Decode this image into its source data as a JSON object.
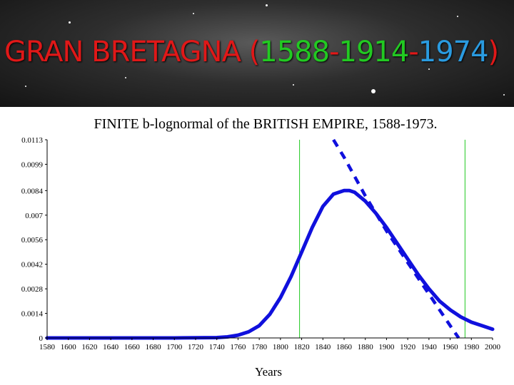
{
  "slide": {
    "title_parts": {
      "country": "GRAN BRETAGNA",
      "open_paren": "(",
      "year_start": "1588",
      "dash1": "-",
      "year_peak": "1914",
      "dash2": "-",
      "year_end": "1974",
      "close_paren": ")"
    },
    "colors": {
      "red": "#e01818",
      "green": "#22c922",
      "blue": "#2a9be0"
    }
  },
  "chart_data": {
    "type": "line",
    "title": "FINITE b-lognormal of the BRITISH EMPIRE, 1588-1973.",
    "xlabel": "Years",
    "ylabel": "",
    "xlim": [
      1580,
      2000
    ],
    "ylim": [
      0,
      0.0113
    ],
    "x_ticks": [
      1580,
      1600,
      1620,
      1640,
      1660,
      1680,
      1700,
      1720,
      1740,
      1760,
      1780,
      1800,
      1820,
      1840,
      1860,
      1880,
      1900,
      1920,
      1940,
      1960,
      1980,
      2000
    ],
    "y_ticks": [
      "0",
      "0.0014",
      "0.0028",
      "0.0042",
      "0.0056",
      "0.007",
      "0.0084",
      "0.0099",
      "0.0113"
    ],
    "grid": false,
    "legend": "none",
    "series": [
      {
        "style": "solid",
        "color": "#1010dd",
        "x": [
          1580,
          1700,
          1740,
          1750,
          1760,
          1770,
          1780,
          1790,
          1800,
          1810,
          1820,
          1830,
          1840,
          1850,
          1860,
          1865,
          1870,
          1880,
          1890,
          1900,
          1910,
          1920,
          1930,
          1940,
          1950,
          1960,
          1970,
          1980,
          1990,
          2000
        ],
        "y": [
          0,
          0,
          2e-05,
          6e-05,
          0.00016,
          0.00035,
          0.0007,
          0.00135,
          0.0023,
          0.0035,
          0.0049,
          0.0063,
          0.0075,
          0.0082,
          0.0084,
          0.0084,
          0.0083,
          0.0078,
          0.0071,
          0.0063,
          0.0054,
          0.0045,
          0.0036,
          0.0028,
          0.0021,
          0.0016,
          0.0012,
          0.0009,
          0.0007,
          0.0005
        ]
      },
      {
        "style": "dashed",
        "color": "#1010dd",
        "x": [
          1850,
          1860,
          1870,
          1880,
          1890,
          1900,
          1910,
          1920,
          1930,
          1940,
          1950,
          1960,
          1968
        ],
        "y": [
          0.0113,
          0.0103,
          0.0092,
          0.0081,
          0.0071,
          0.0061,
          0.0052,
          0.0043,
          0.0034,
          0.0025,
          0.0016,
          0.0007,
          0
        ]
      }
    ],
    "vertical_lines": [
      {
        "x": 1818,
        "color": "#22c922"
      },
      {
        "x": 1974,
        "color": "#22c922"
      }
    ]
  }
}
